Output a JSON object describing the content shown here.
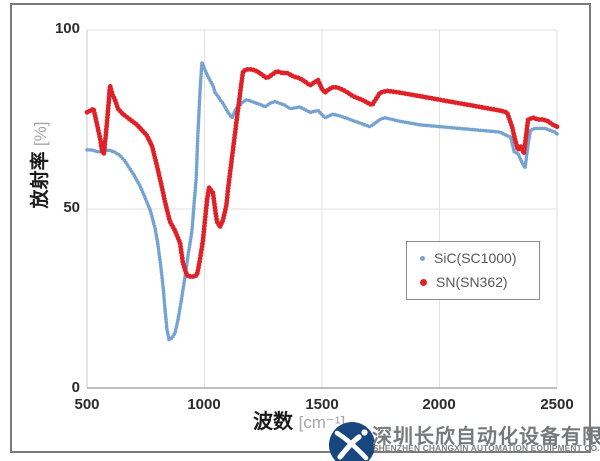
{
  "watermark": {
    "company_cn": "深圳长欣自动化设备有限公司",
    "company_en": "SHENZHEN CHANGXIN AUTOMATION EQUIPMENT CO. LTD",
    "logo_color": "#17477e"
  },
  "chart_data": {
    "type": "scatter",
    "title": "",
    "xlabel": "波数",
    "xlabel_unit": "[cm⁻¹]",
    "ylabel": "放射率",
    "ylabel_unit": "[%]",
    "xlim": [
      500,
      2500
    ],
    "ylim": [
      0,
      100
    ],
    "x_ticks": [
      500,
      1000,
      1500,
      2000,
      2500
    ],
    "y_ticks": [
      0,
      50,
      100
    ],
    "x_tick_labels": [
      "500",
      "1000",
      "1500",
      "2000",
      "2500"
    ],
    "y_tick_labels": [
      "0",
      "50",
      "100"
    ],
    "grid": true,
    "legend_position": "center-right",
    "series": [
      {
        "name": "SiC(SC1000)",
        "color": "#74a3d2",
        "marker_radius_px": 1.8,
        "dot_spacing_px": 2.6,
        "points": [
          [
            500,
            66.5
          ],
          [
            520,
            66.5
          ],
          [
            545,
            66
          ],
          [
            565,
            66
          ],
          [
            590,
            66.5
          ],
          [
            615,
            66
          ],
          [
            640,
            65
          ],
          [
            660,
            63.5
          ],
          [
            680,
            61.5
          ],
          [
            700,
            59.5
          ],
          [
            725,
            56.5
          ],
          [
            745,
            53.5
          ],
          [
            770,
            49.5
          ],
          [
            790,
            44.5
          ],
          [
            802,
            40
          ],
          [
            815,
            33.5
          ],
          [
            825,
            27.5
          ],
          [
            832,
            22
          ],
          [
            840,
            16.5
          ],
          [
            849,
            13.5
          ],
          [
            862,
            14
          ],
          [
            875,
            15.5
          ],
          [
            887,
            19
          ],
          [
            904,
            25.5
          ],
          [
            917,
            31
          ],
          [
            930,
            37
          ],
          [
            947,
            44
          ],
          [
            955,
            51
          ],
          [
            964,
            58
          ],
          [
            972,
            71
          ],
          [
            981,
            83
          ],
          [
            989,
            91
          ],
          [
            998,
            89.5
          ],
          [
            1011,
            87.5
          ],
          [
            1023,
            86
          ],
          [
            1036,
            84.5
          ],
          [
            1045,
            82.5
          ],
          [
            1057,
            81.5
          ],
          [
            1066,
            80.5
          ],
          [
            1079,
            79.5
          ],
          [
            1087,
            78.5
          ],
          [
            1100,
            77
          ],
          [
            1117,
            75.5
          ],
          [
            1134,
            78
          ],
          [
            1151,
            79
          ],
          [
            1164,
            80
          ],
          [
            1181,
            80.5
          ],
          [
            1202,
            80
          ],
          [
            1223,
            79.5
          ],
          [
            1245,
            79
          ],
          [
            1257,
            78.5
          ],
          [
            1278,
            79.5
          ],
          [
            1300,
            80
          ],
          [
            1321,
            79.5
          ],
          [
            1342,
            79
          ],
          [
            1364,
            78
          ],
          [
            1406,
            78.5
          ],
          [
            1449,
            77
          ],
          [
            1483,
            77.5
          ],
          [
            1513,
            75.5
          ],
          [
            1547,
            76.5
          ],
          [
            1577,
            76
          ],
          [
            1619,
            75
          ],
          [
            1662,
            74
          ],
          [
            1704,
            73
          ],
          [
            1747,
            75
          ],
          [
            1768,
            75.5
          ],
          [
            1832,
            74.5
          ],
          [
            1917,
            73.5
          ],
          [
            2002,
            73
          ],
          [
            2087,
            72.5
          ],
          [
            2172,
            72
          ],
          [
            2257,
            71.5
          ],
          [
            2287,
            70.5
          ],
          [
            2304,
            70
          ],
          [
            2317,
            66
          ],
          [
            2334,
            65.5
          ],
          [
            2355,
            62.5
          ],
          [
            2364,
            61.5
          ],
          [
            2377,
            68
          ],
          [
            2387,
            72
          ],
          [
            2406,
            72.5
          ],
          [
            2428,
            72.5
          ],
          [
            2449,
            72.5
          ],
          [
            2470,
            72
          ],
          [
            2491,
            71.5
          ],
          [
            2500,
            71
          ]
        ]
      },
      {
        "name": "SN(SN362)",
        "color": "#e02128",
        "marker_radius_px": 2.4,
        "dot_spacing_px": 3.0,
        "points": [
          [
            500,
            77
          ],
          [
            515,
            77.5
          ],
          [
            528,
            78
          ],
          [
            543,
            73.5
          ],
          [
            555,
            70
          ],
          [
            565,
            66
          ],
          [
            572,
            65.5
          ],
          [
            582,
            72
          ],
          [
            590,
            78
          ],
          [
            598,
            84.5
          ],
          [
            608,
            82
          ],
          [
            619,
            80.5
          ],
          [
            632,
            78
          ],
          [
            653,
            76.5
          ],
          [
            683,
            75
          ],
          [
            713,
            73.5
          ],
          [
            734,
            72
          ],
          [
            755,
            70.5
          ],
          [
            777,
            67.5
          ],
          [
            798,
            62
          ],
          [
            819,
            56
          ],
          [
            832,
            52
          ],
          [
            853,
            46.5
          ],
          [
            874,
            44
          ],
          [
            896,
            40.5
          ],
          [
            908,
            35
          ],
          [
            925,
            31.5
          ],
          [
            945,
            31
          ],
          [
            968,
            31.5
          ],
          [
            981,
            36
          ],
          [
            994,
            41.5
          ],
          [
            1002,
            47
          ],
          [
            1011,
            52.5
          ],
          [
            1019,
            56
          ],
          [
            1036,
            54.5
          ],
          [
            1045,
            50
          ],
          [
            1053,
            46.5
          ],
          [
            1066,
            45
          ],
          [
            1079,
            47
          ],
          [
            1093,
            51
          ],
          [
            1100,
            55.5
          ],
          [
            1121,
            66.5
          ],
          [
            1143,
            78
          ],
          [
            1164,
            88.5
          ],
          [
            1181,
            89
          ],
          [
            1202,
            89
          ],
          [
            1223,
            88.5
          ],
          [
            1245,
            87.5
          ],
          [
            1266,
            86.5
          ],
          [
            1287,
            87.5
          ],
          [
            1308,
            88.5
          ],
          [
            1330,
            88
          ],
          [
            1351,
            88
          ],
          [
            1380,
            87
          ],
          [
            1406,
            86.5
          ],
          [
            1430,
            85.5
          ],
          [
            1449,
            84.5
          ],
          [
            1470,
            85.5
          ],
          [
            1483,
            86
          ],
          [
            1500,
            83.5
          ],
          [
            1513,
            82.5
          ],
          [
            1530,
            83.5
          ],
          [
            1547,
            84
          ],
          [
            1564,
            84
          ],
          [
            1598,
            83
          ],
          [
            1632,
            81.5
          ],
          [
            1670,
            80.5
          ],
          [
            1713,
            79
          ],
          [
            1747,
            82.5
          ],
          [
            1777,
            83
          ],
          [
            1832,
            82.5
          ],
          [
            1875,
            82
          ],
          [
            1917,
            81.5
          ],
          [
            1960,
            81
          ],
          [
            2002,
            80.5
          ],
          [
            2045,
            80
          ],
          [
            2087,
            79.5
          ],
          [
            2130,
            79
          ],
          [
            2172,
            78.5
          ],
          [
            2215,
            78
          ],
          [
            2257,
            77.5
          ],
          [
            2287,
            77
          ],
          [
            2309,
            73
          ],
          [
            2321,
            69.5
          ],
          [
            2334,
            66.5
          ],
          [
            2347,
            67.5
          ],
          [
            2359,
            65.5
          ],
          [
            2377,
            75
          ],
          [
            2398,
            75.5
          ],
          [
            2419,
            75
          ],
          [
            2440,
            75
          ],
          [
            2462,
            74.5
          ],
          [
            2483,
            73.5
          ],
          [
            2500,
            73
          ]
        ]
      }
    ]
  }
}
